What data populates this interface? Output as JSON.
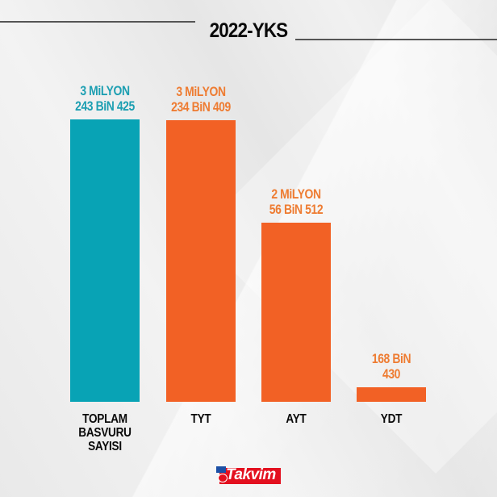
{
  "title": "2022-YKS",
  "colors": {
    "total": "#08A3B5",
    "exam": "#F26125",
    "total_label": "#1D9FB2",
    "exam_label": "#EE7C32",
    "background": "#ECECEC"
  },
  "bars": [
    {
      "category_lines": [
        "TOPLAM",
        "BASVURU",
        "SAYISI"
      ],
      "value_lines": [
        "3 MiLYON",
        "243 BiN 425"
      ],
      "value": 3243425,
      "color": "#08A3B5",
      "label_color": "#1D9FB2"
    },
    {
      "category_lines": [
        "TYT"
      ],
      "value_lines": [
        "3 MiLYON",
        "234 BiN 409"
      ],
      "value": 3234409,
      "color": "#F26125",
      "label_color": "#EE7C32"
    },
    {
      "category_lines": [
        "AYT"
      ],
      "value_lines": [
        "2 MiLYON",
        "56 BiN 512"
      ],
      "value": 2056512,
      "color": "#F26125",
      "label_color": "#EE7C32"
    },
    {
      "category_lines": [
        "YDT"
      ],
      "value_lines": [
        "168 BiN",
        "430"
      ],
      "value": 168430,
      "color": "#F26125",
      "label_color": "#EE7C32"
    }
  ],
  "logo": {
    "text": "Takvim"
  },
  "chart_data": {
    "type": "bar",
    "title": "2022-YKS",
    "categories": [
      "TOPLAM BASVURU SAYISI",
      "TYT",
      "AYT",
      "YDT"
    ],
    "values": [
      3243425,
      3234409,
      2056512,
      168430
    ],
    "data_labels": [
      "3 MiLYON 243 BiN 425",
      "3 MiLYON 234 BiN 409",
      "2 MiLYON 56 BiN 512",
      "168 BiN 430"
    ],
    "xlabel": "",
    "ylabel": "",
    "grid": false,
    "legend": "none",
    "bar_colors": [
      "#08A3B5",
      "#F26125",
      "#F26125",
      "#F26125"
    ]
  }
}
